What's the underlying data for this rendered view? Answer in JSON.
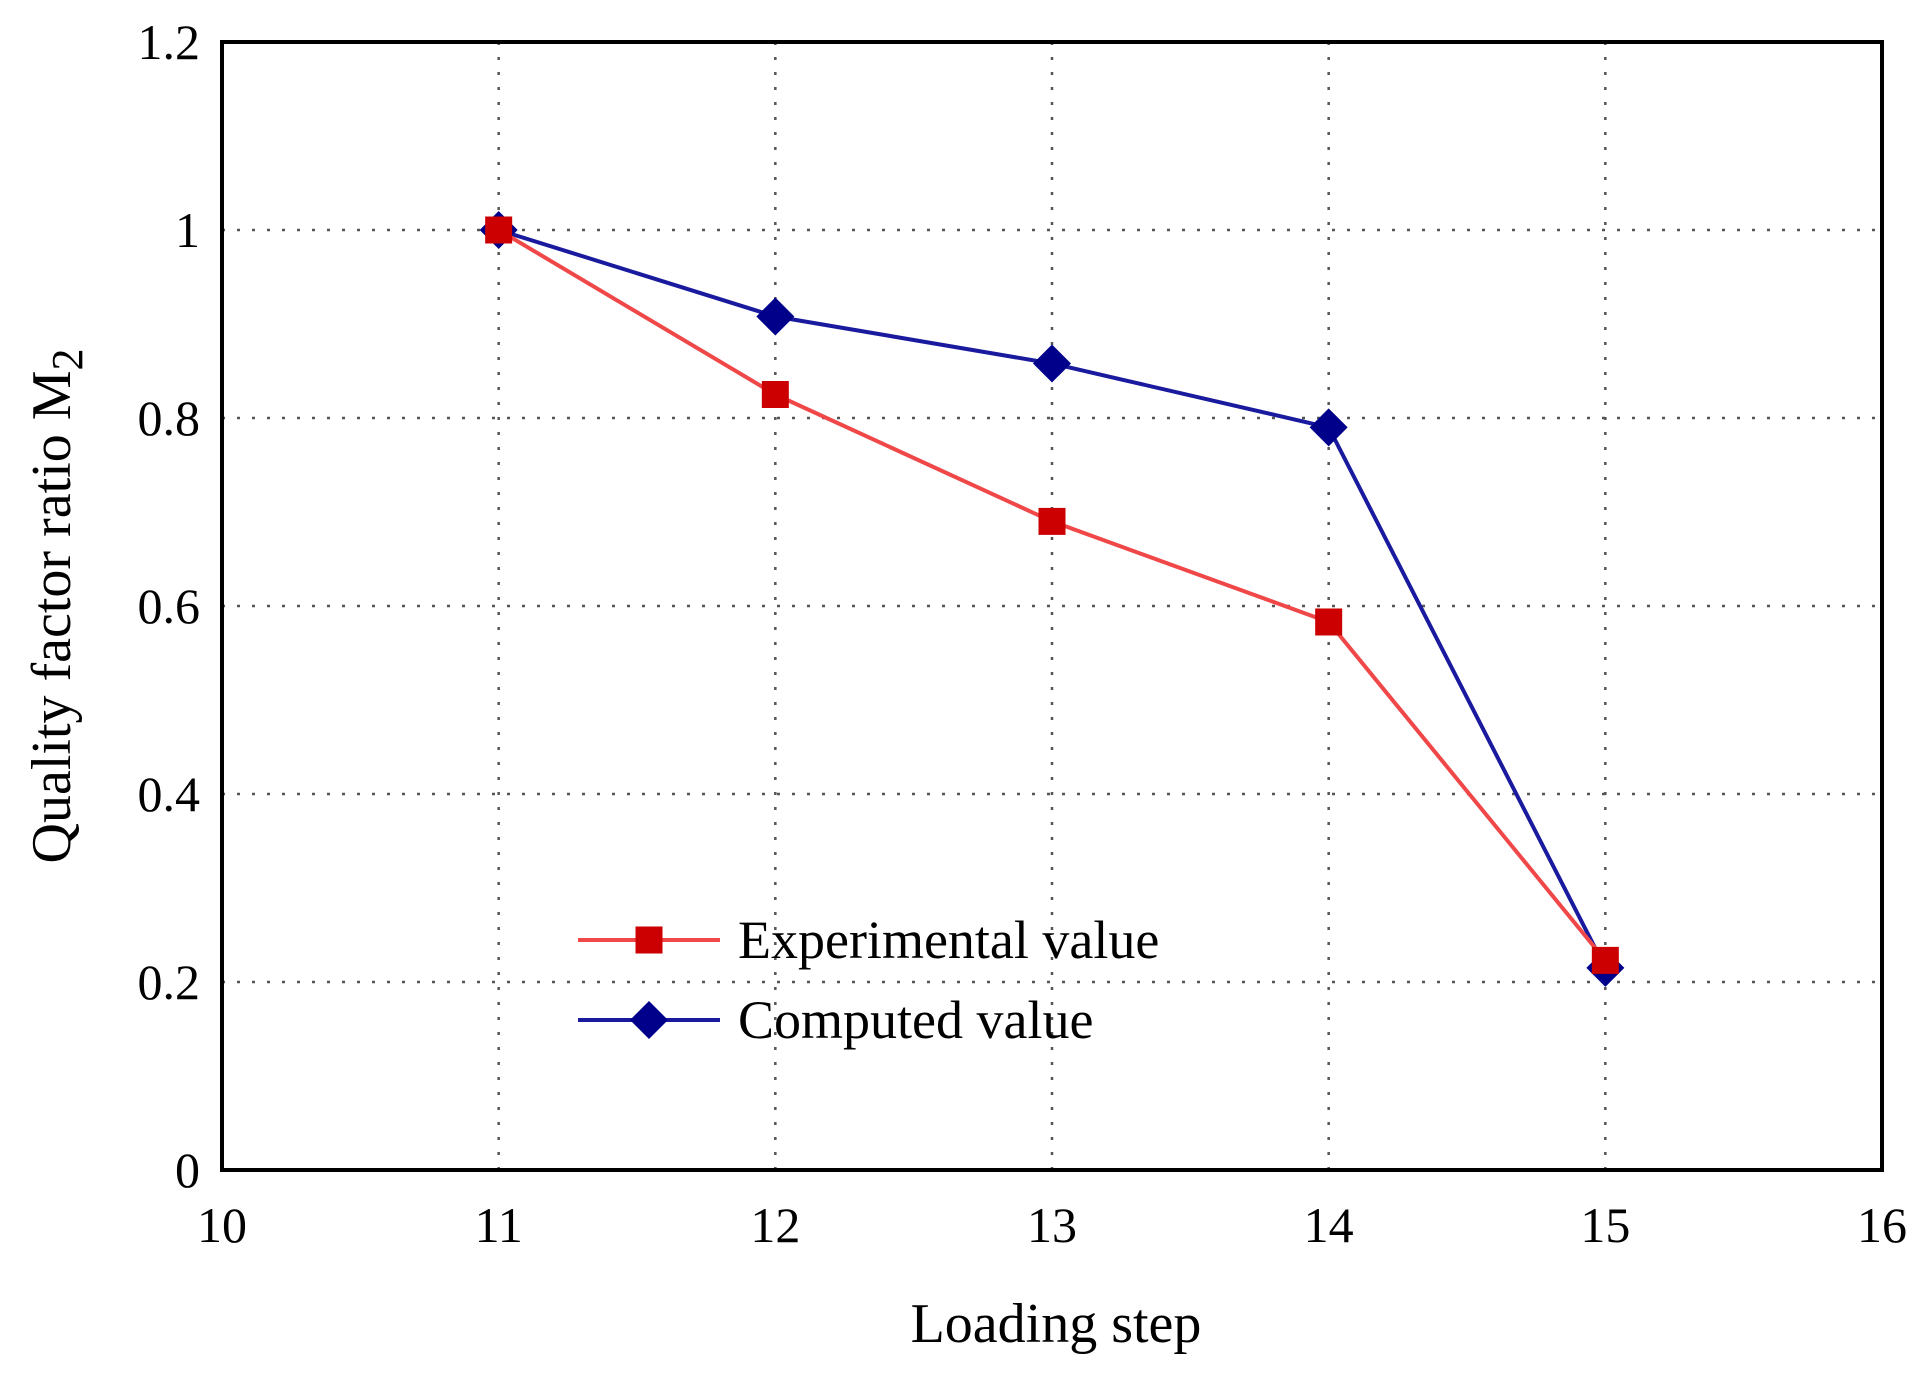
{
  "chart_data": {
    "type": "line",
    "title": "",
    "xlabel": "Loading step",
    "ylabel_main": "Quality factor ratio M",
    "ylabel_subscript": "2",
    "xlim": [
      10,
      16
    ],
    "ylim": [
      0,
      1.2
    ],
    "xticks": [
      10,
      11,
      12,
      13,
      14,
      15,
      16
    ],
    "yticks": [
      0,
      0.2,
      0.4,
      0.6,
      0.8,
      1,
      1.2
    ],
    "xtick_labels": [
      "10",
      "11",
      "12",
      "13",
      "14",
      "15",
      "16"
    ],
    "ytick_labels": [
      "0",
      "0.2",
      "0.4",
      "0.6",
      "0.8",
      "1",
      "1.2"
    ],
    "grid": true,
    "legend_position": "lower-left",
    "series": [
      {
        "name": "Experimental value",
        "marker": "square",
        "line_color": "#F04848",
        "marker_color": "#CC0000",
        "x": [
          11,
          12,
          13,
          14,
          15
        ],
        "y": [
          1.0,
          0.825,
          0.69,
          0.583,
          0.223
        ]
      },
      {
        "name": "Computed value",
        "marker": "diamond",
        "line_color": "#1A1A9E",
        "marker_color": "#00008B",
        "x": [
          11,
          12,
          13,
          14,
          15
        ],
        "y": [
          1.0,
          0.908,
          0.858,
          0.79,
          0.215
        ]
      }
    ]
  }
}
